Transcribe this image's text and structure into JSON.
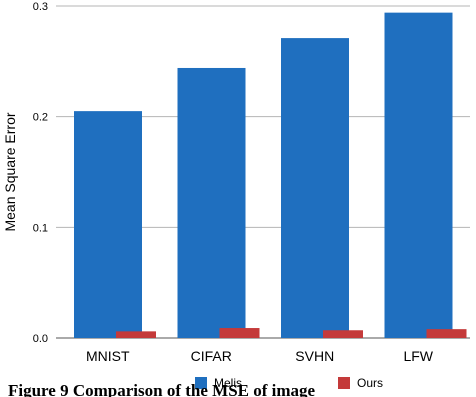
{
  "chart_data": {
    "type": "bar",
    "title": "",
    "xlabel": "",
    "ylabel": "Mean Square Error",
    "ylim": [
      0,
      0.3
    ],
    "yticks": [
      "0.0",
      "0.1",
      "0.2",
      "0.3"
    ],
    "grid": true,
    "legend_position": "bottom",
    "categories": [
      "MNIST",
      "CIFAR",
      "SVHN",
      "LFW"
    ],
    "series": [
      {
        "name": "Melis",
        "color": "#1f6fbf",
        "values": [
          0.205,
          0.244,
          0.271,
          0.294
        ]
      },
      {
        "name": "Ours",
        "color": "#c43a3a",
        "values": [
          0.006,
          0.009,
          0.007,
          0.008
        ]
      }
    ]
  },
  "caption": "Figure 9 Comparison of the MSE of image"
}
